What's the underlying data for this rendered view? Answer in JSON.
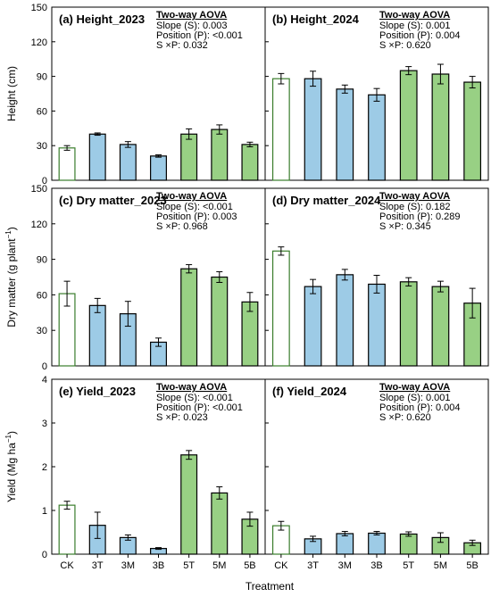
{
  "figure": {
    "xlabel": "Treatment",
    "categories": [
      "CK",
      "3T",
      "3M",
      "3B",
      "5T",
      "5M",
      "5B"
    ],
    "colors": {
      "ck": "#ffffff",
      "three": "#9dcbe6",
      "five": "#98d084",
      "edge_ck": "#3a7d2c",
      "edge": "#000000"
    }
  },
  "rows": [
    {
      "ylabel": "Height (cm)",
      "ylabel_sup": "",
      "ylabel_suffix": "",
      "ylim": [
        0,
        150
      ],
      "yticks": [
        "0",
        "30",
        "60",
        "90",
        "120",
        "150"
      ]
    },
    {
      "ylabel": "Dry matter (g plant",
      "ylabel_sup": "−1",
      "ylabel_suffix": ")",
      "ylim": [
        0,
        150
      ],
      "yticks": [
        "0",
        "30",
        "60",
        "90",
        "120",
        "150"
      ]
    },
    {
      "ylabel": "Yield (Mg ha",
      "ylabel_sup": "−1",
      "ylabel_suffix": ")",
      "ylim": [
        0,
        4
      ],
      "yticks": [
        "0",
        "1",
        "2",
        "3",
        "4"
      ]
    }
  ],
  "chart_data": [
    {
      "type": "bar",
      "title": "(a) Height_2023",
      "categories": [
        "CK",
        "3T",
        "3M",
        "3B",
        "5T",
        "5M",
        "5B"
      ],
      "values": [
        28,
        40,
        31,
        21,
        40,
        44,
        31
      ],
      "errors": [
        2,
        1,
        2.5,
        1,
        4.5,
        4,
        2
      ],
      "ylabel": "Height (cm)",
      "ylim": [
        0,
        150
      ],
      "stats": {
        "head": "Two-way AOVA",
        "lines": [
          "Slope (S): 0.003",
          "Position (P): <0.001",
          "S ×P: 0.032"
        ]
      }
    },
    {
      "type": "bar",
      "title": "(b) Height_2024",
      "categories": [
        "CK",
        "3T",
        "3M",
        "3B",
        "5T",
        "5M",
        "5B"
      ],
      "values": [
        88,
        88,
        79,
        74,
        95,
        92,
        85
      ],
      "errors": [
        4.5,
        6.5,
        3.5,
        5.5,
        3.5,
        8.5,
        5
      ],
      "ylabel": "",
      "ylim": [
        0,
        150
      ],
      "stats": {
        "head": "Two-way AOVA",
        "lines": [
          "Slope (S): 0.001",
          "Position (P): 0.004",
          "S ×P: 0.620"
        ]
      }
    },
    {
      "type": "bar",
      "title": "(c) Dry matter_2023",
      "categories": [
        "CK",
        "3T",
        "3M",
        "3B",
        "5T",
        "5M",
        "5B"
      ],
      "values": [
        61,
        51,
        44,
        20,
        82,
        75,
        54
      ],
      "errors": [
        10.5,
        6,
        10.5,
        3.5,
        3.5,
        4.5,
        8
      ],
      "ylabel": "Dry matter (g plant−1)",
      "ylim": [
        0,
        150
      ],
      "stats": {
        "head": "Two-way AOVA",
        "lines": [
          "Slope (S): <0.001",
          "Position (P): 0.003",
          "S ×P: 0.968"
        ]
      }
    },
    {
      "type": "bar",
      "title": "(d) Dry matter_2024",
      "categories": [
        "CK",
        "3T",
        "3M",
        "3B",
        "5T",
        "5M",
        "5B"
      ],
      "values": [
        97,
        67,
        77,
        69,
        71,
        67,
        53
      ],
      "errors": [
        3.5,
        6,
        4.5,
        7.5,
        3.5,
        4.5,
        12.5
      ],
      "ylabel": "",
      "ylim": [
        0,
        150
      ],
      "stats": {
        "head": "Two-way AOVA",
        "lines": [
          "Slope (S): 0.182",
          "Position (P): 0.289",
          "S ×P: 0.345"
        ]
      }
    },
    {
      "type": "bar",
      "title": "(e) Yield_2023",
      "categories": [
        "CK",
        "3T",
        "3M",
        "3B",
        "5T",
        "5M",
        "5B"
      ],
      "values": [
        1.12,
        0.66,
        0.38,
        0.13,
        2.27,
        1.4,
        0.8
      ],
      "errors": [
        0.09,
        0.3,
        0.06,
        0.02,
        0.1,
        0.14,
        0.16
      ],
      "ylabel": "Yield (Mg ha−1)",
      "ylim": [
        0,
        4
      ],
      "stats": {
        "head": "Two-way AOVA",
        "lines": [
          "Slope (S): <0.001",
          "Position (P): <0.001",
          "S ×P: 0.023"
        ]
      }
    },
    {
      "type": "bar",
      "title": "(f) Yield_2024",
      "categories": [
        "CK",
        "3T",
        "3M",
        "3B",
        "5T",
        "5M",
        "5B"
      ],
      "values": [
        0.65,
        0.35,
        0.47,
        0.48,
        0.46,
        0.38,
        0.26
      ],
      "errors": [
        0.1,
        0.06,
        0.05,
        0.04,
        0.05,
        0.11,
        0.06
      ],
      "ylabel": "",
      "ylim": [
        0,
        4
      ],
      "stats": {
        "head": "Two-way AOVA",
        "lines": [
          "Slope (S): 0.001",
          "Position (P): 0.004",
          "S ×P: 0.620"
        ]
      }
    }
  ]
}
